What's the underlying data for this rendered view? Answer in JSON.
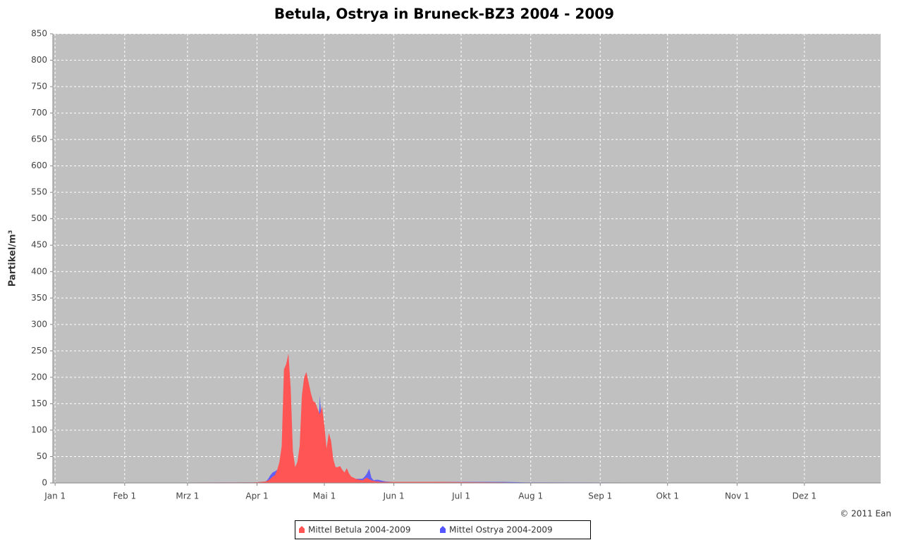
{
  "chart_data": {
    "type": "area",
    "title": "Betula, Ostrya in Bruneck-BZ3 2004 - 2009",
    "y_label": "Partikel/m³",
    "credit": "© 2011 Ean",
    "x": [
      0,
      88,
      92,
      94,
      95,
      96,
      97,
      98,
      99,
      100,
      101,
      102,
      103,
      104,
      105,
      106,
      107,
      108,
      109,
      110,
      111,
      112,
      113,
      114,
      115,
      116,
      117,
      118,
      119,
      120,
      121,
      122,
      123,
      124,
      125,
      126,
      127,
      128,
      129,
      130,
      131,
      132,
      133,
      134,
      135,
      136,
      137,
      138,
      139,
      140,
      141,
      142,
      143,
      144,
      145,
      146,
      147,
      150,
      170,
      200,
      210,
      366
    ],
    "series": [
      {
        "name": "Mittel Betula 2004-2009",
        "color": "#ff5555",
        "values": [
          0,
          1,
          2,
          3,
          5,
          8,
          12,
          15,
          25,
          40,
          70,
          215,
          225,
          245,
          180,
          60,
          30,
          40,
          70,
          165,
          200,
          210,
          190,
          170,
          155,
          152,
          140,
          130,
          145,
          110,
          65,
          95,
          80,
          45,
          30,
          30,
          32,
          25,
          20,
          28,
          18,
          12,
          10,
          8,
          7,
          6,
          5,
          8,
          10,
          7,
          5,
          4,
          3,
          3,
          2,
          2,
          2,
          2,
          2,
          1,
          0,
          0
        ]
      },
      {
        "name": "Mittel Ostrya 2004-2009",
        "color": "#5555ff",
        "values": [
          0,
          1,
          2,
          3,
          8,
          15,
          20,
          22,
          25,
          28,
          30,
          20,
          15,
          10,
          8,
          6,
          5,
          5,
          5,
          5,
          5,
          5,
          5,
          5,
          5,
          10,
          60,
          165,
          100,
          40,
          20,
          15,
          12,
          10,
          10,
          10,
          10,
          10,
          10,
          10,
          8,
          8,
          8,
          8,
          8,
          8,
          8,
          12,
          18,
          27,
          10,
          5,
          6,
          6,
          5,
          4,
          3,
          2,
          2,
          2,
          1,
          0
        ]
      }
    ],
    "xlim": [
      -1,
      368
    ],
    "xticks": [
      {
        "value": 0,
        "label": "Jan 1"
      },
      {
        "value": 31,
        "label": "Feb 1"
      },
      {
        "value": 59,
        "label": "Mrz 1"
      },
      {
        "value": 90,
        "label": "Apr 1"
      },
      {
        "value": 120,
        "label": "Mai 1"
      },
      {
        "value": 151,
        "label": "Jun 1"
      },
      {
        "value": 181,
        "label": "Jul 1"
      },
      {
        "value": 212,
        "label": "Aug 1"
      },
      {
        "value": 243,
        "label": "Sep 1"
      },
      {
        "value": 273,
        "label": "Okt 1"
      },
      {
        "value": 304,
        "label": "Nov 1"
      },
      {
        "value": 334,
        "label": "Dez 1"
      }
    ],
    "ylim": [
      0,
      850
    ],
    "yticks": [
      0,
      50,
      100,
      150,
      200,
      250,
      300,
      350,
      400,
      450,
      500,
      550,
      600,
      650,
      700,
      750,
      800,
      850
    ],
    "grid": true,
    "legend": "bottom"
  }
}
